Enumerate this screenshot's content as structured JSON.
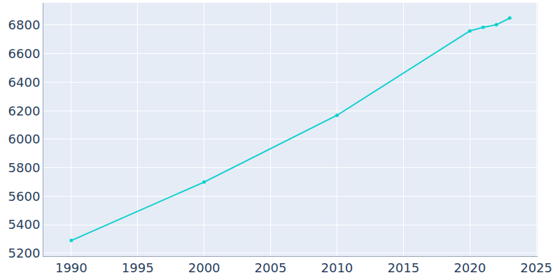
{
  "chart_data": {
    "type": "line",
    "x": [
      1990,
      2000,
      2010,
      2020,
      2021,
      2022,
      2023
    ],
    "values": [
      5290,
      5700,
      6168,
      6760,
      6785,
      6803,
      6850
    ],
    "color": "#0fcfcf",
    "marker": "circle",
    "xlim": [
      1987.9,
      2025.1
    ],
    "xticks": [
      1990,
      1995,
      2000,
      2005,
      2010,
      2015,
      2020,
      2025
    ],
    "ylim": [
      5180,
      6957
    ],
    "yticks": [
      5200,
      5400,
      5600,
      5800,
      6000,
      6200,
      6400,
      6600,
      6800
    ],
    "grid": true
  }
}
